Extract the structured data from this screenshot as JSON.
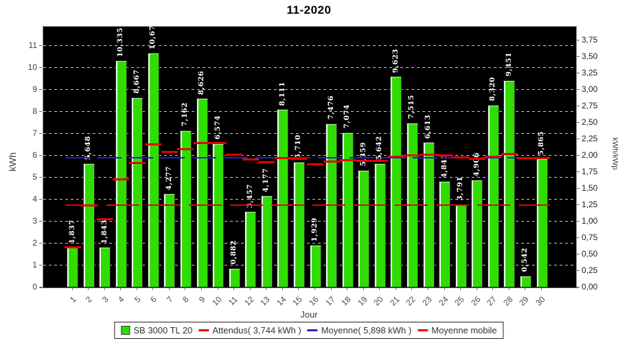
{
  "title": "11-2020",
  "axes": {
    "left_label": "kWh",
    "right_label": "kWh/kWp",
    "x_label": "Jour",
    "left_ticks": [
      "0",
      "1",
      "2",
      "3",
      "4",
      "5",
      "6",
      "7",
      "8",
      "9",
      "10",
      "11"
    ],
    "right_ticks": [
      "0,00",
      "0,25",
      "0,50",
      "0,75",
      "1,00",
      "1,25",
      "1,50",
      "1,75",
      "2,00",
      "2,25",
      "2,50",
      "2,75",
      "3,00",
      "3,25",
      "3,50",
      "3,75"
    ]
  },
  "chart_data": {
    "type": "bar",
    "title": "11-2020",
    "xlabel": "Jour",
    "ylabel": "kWh",
    "y2label": "kWh/kWp",
    "ylim": [
      0,
      11.875
    ],
    "y2lim": [
      0,
      3.958
    ],
    "grid": "horizontal-dashed",
    "plot_background": "#000000",
    "legend_position": "bottom",
    "categories": [
      "1",
      "2",
      "3",
      "4",
      "5",
      "6",
      "7",
      "8",
      "9",
      "10",
      "11",
      "12",
      "13",
      "14",
      "15",
      "16",
      "17",
      "18",
      "19",
      "20",
      "21",
      "22",
      "23",
      "24",
      "25",
      "26",
      "27",
      "28",
      "29",
      "30"
    ],
    "series": [
      {
        "name": "SB 3000 TL 20",
        "type": "bar",
        "color": "#30dd02",
        "values": [
          1.837,
          5.648,
          1.843,
          10.335,
          8.667,
          10.673,
          4.277,
          7.162,
          8.626,
          6.574,
          0.882,
          3.457,
          4.177,
          8.111,
          5.71,
          1.929,
          7.476,
          7.074,
          5.359,
          5.642,
          9.623,
          7.515,
          6.613,
          4.843,
          3.791,
          4.906,
          8.32,
          9.451,
          0.542,
          5.865
        ]
      },
      {
        "name": "Attendus( 3,744 kWh )",
        "type": "hline",
        "color": "#e60000",
        "value": 3.744
      },
      {
        "name": "Moyenne( 5,898 kWh )",
        "type": "hline",
        "color": "#2121cc",
        "value": 5.898
      },
      {
        "name": "Moyenne mobile",
        "type": "per-category-dash",
        "color": "#e60000",
        "values": [
          1.837,
          3.743,
          3.109,
          4.916,
          5.666,
          6.501,
          6.183,
          6.305,
          6.563,
          6.564,
          6.048,
          5.832,
          5.704,
          5.876,
          5.865,
          5.619,
          5.728,
          5.803,
          5.78,
          5.773,
          5.956,
          6.027,
          6.053,
          6.002,
          5.914,
          5.875,
          5.966,
          6.09,
          5.899,
          5.898
        ]
      }
    ]
  },
  "legend": {
    "items": [
      {
        "label": "SB 3000 TL 20",
        "marker": "square",
        "color": "#30dd02"
      },
      {
        "label": "Attendus( 3,744 kWh )",
        "marker": "dash",
        "color": "#e60000"
      },
      {
        "label": "Moyenne( 5,898 kWh )",
        "marker": "dash",
        "color": "#2121cc"
      },
      {
        "label": "Moyenne mobile",
        "marker": "dash",
        "color": "#e60000"
      }
    ]
  }
}
